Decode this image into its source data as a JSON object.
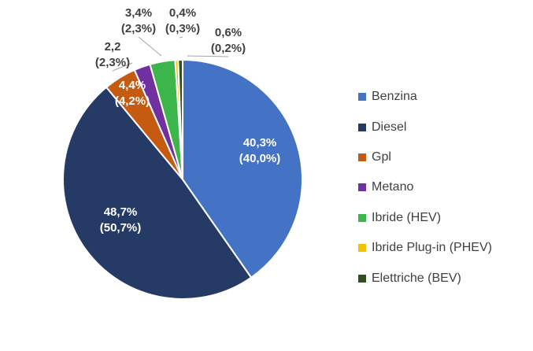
{
  "chart_data": {
    "type": "pie",
    "series": [
      {
        "name": "Benzina",
        "value": 40.3,
        "label_value": "40,3%",
        "label_secondary": "(40,0%)",
        "color": "#4472C4"
      },
      {
        "name": "Diesel",
        "value": 48.7,
        "label_value": "48,7%",
        "label_secondary": "(50,7%)",
        "color": "#263A66"
      },
      {
        "name": "Gpl",
        "value": 4.4,
        "label_value": "4,4%",
        "label_secondary": "(4,2%)",
        "color": "#C55A11"
      },
      {
        "name": "Metano",
        "value": 2.2,
        "label_value": "2,2",
        "label_secondary": "(2,3%)",
        "color": "#7030A0"
      },
      {
        "name": "Ibride (HEV)",
        "value": 3.4,
        "label_value": "3,4%",
        "label_secondary": "(2,3%)",
        "color": "#3CB54A"
      },
      {
        "name": "Ibride Plug-in  (PHEV)",
        "value": 0.4,
        "label_value": "0,4%",
        "label_secondary": "(0,3%)",
        "color": "#F2C200"
      },
      {
        "name": "Elettriche (BEV)",
        "value": 0.6,
        "label_value": "0,6%",
        "label_secondary": "(0,2%)",
        "color": "#2F4F1F"
      }
    ],
    "legend_position": "right"
  }
}
